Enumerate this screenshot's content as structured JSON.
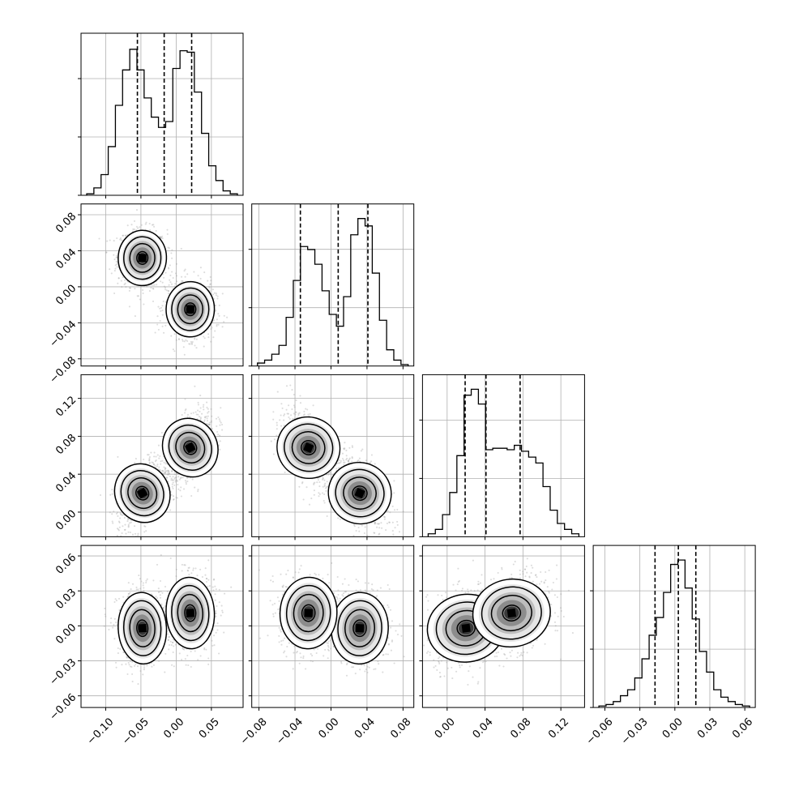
{
  "chart_data": {
    "type": "corner",
    "grid": true,
    "quantile_lines": "dashed",
    "params": [
      {
        "range": [
          -0.135,
          0.095
        ],
        "ticks": [
          -0.1,
          -0.05,
          0.0,
          0.05
        ],
        "tick_labels": [
          "−0.10",
          "−0.05",
          "0.00",
          "0.05"
        ]
      },
      {
        "range": [
          -0.088,
          0.092
        ],
        "ticks": [
          -0.08,
          -0.04,
          0.0,
          0.04,
          0.08
        ],
        "tick_labels": [
          "−0.08",
          "−0.04",
          "0.00",
          "0.04",
          "0.08"
        ]
      },
      {
        "range": [
          -0.026,
          0.145
        ],
        "ticks": [
          0.0,
          0.04,
          0.08,
          0.12
        ],
        "tick_labels": [
          "0.00",
          "0.04",
          "0.08",
          "0.12"
        ]
      },
      {
        "range": [
          -0.07,
          0.069
        ],
        "ticks": [
          -0.06,
          -0.03,
          0.0,
          0.03,
          0.06
        ],
        "tick_labels": [
          "−0.06",
          "−0.03",
          "0.00",
          "0.03",
          "0.06"
        ]
      }
    ],
    "quantiles": [
      [
        -0.055,
        -0.017,
        0.022
      ],
      [
        -0.034,
        0.008,
        0.041
      ],
      [
        0.019,
        0.041,
        0.077
      ],
      [
        -0.017,
        0.003,
        0.018
      ]
    ],
    "histograms": [
      {
        "counts": [
          0.01,
          0.05,
          0.14,
          0.33,
          0.61,
          0.85,
          0.99,
          0.85,
          0.66,
          0.53,
          0.46,
          0.5,
          0.86,
          0.98,
          0.97,
          0.7,
          0.42,
          0.2,
          0.1,
          0.03,
          0.01
        ]
      },
      {
        "counts": [
          0.02,
          0.04,
          0.08,
          0.14,
          0.33,
          0.58,
          0.81,
          0.79,
          0.69,
          0.51,
          0.35,
          0.27,
          0.47,
          0.89,
          1.0,
          0.95,
          0.63,
          0.31,
          0.11,
          0.04,
          0.01
        ]
      },
      {
        "counts": [
          0.02,
          0.05,
          0.15,
          0.3,
          0.55,
          0.96,
          1.0,
          0.9,
          0.59,
          0.6,
          0.6,
          0.59,
          0.62,
          0.58,
          0.54,
          0.5,
          0.34,
          0.18,
          0.09,
          0.05,
          0.02
        ]
      },
      {
        "counts": [
          0.01,
          0.02,
          0.04,
          0.08,
          0.12,
          0.2,
          0.33,
          0.49,
          0.61,
          0.78,
          0.97,
          1.0,
          0.81,
          0.6,
          0.38,
          0.24,
          0.12,
          0.07,
          0.04,
          0.02,
          0.01
        ]
      }
    ],
    "modes": [
      [
        -0.048,
        0.032,
        0.02,
        -0.002
      ],
      [
        0.02,
        -0.025,
        0.068,
        0.011
      ]
    ],
    "sigmas": [
      0.013,
      0.012,
      0.015,
      0.012
    ],
    "pair_correlations": [
      {
        "i": 0,
        "j": 1,
        "rho": -0.05
      },
      {
        "i": 0,
        "j": 2,
        "rho": 0.55
      },
      {
        "i": 1,
        "j": 2,
        "rho": -0.5
      },
      {
        "i": 0,
        "j": 3,
        "rho": 0.05
      },
      {
        "i": 1,
        "j": 3,
        "rho": -0.05
      },
      {
        "i": 2,
        "j": 3,
        "rho": 0.2
      }
    ]
  }
}
